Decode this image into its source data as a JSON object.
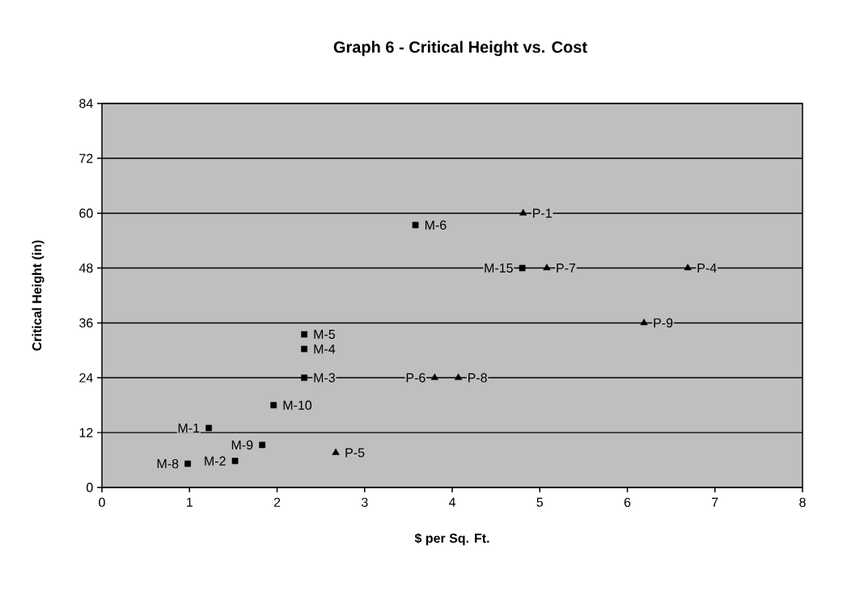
{
  "chart_data": {
    "type": "scatter",
    "title": "Graph 6 - Critical Height vs. Cost",
    "xlabel": "$ per Sq. Ft.",
    "ylabel": "Critical Height (in)",
    "xlim": [
      0,
      8
    ],
    "ylim": [
      0,
      84
    ],
    "xticks": [
      0,
      1,
      2,
      3,
      4,
      5,
      6,
      7,
      8
    ],
    "yticks": [
      0,
      12,
      24,
      36,
      48,
      60,
      72,
      84
    ],
    "grid": "y",
    "series": [
      {
        "marker": "square",
        "color": "#000000",
        "x": [
          1.22,
          1.52,
          2.31,
          2.31,
          2.31,
          3.58,
          0.98,
          1.83,
          1.96,
          4.8
        ],
        "values": [
          13.0,
          5.8,
          24,
          30.3,
          33.5,
          57.4,
          5.2,
          9.3,
          18.0,
          48
        ]
      },
      {
        "marker": "triangle",
        "color": "#000000",
        "x": [
          4.81,
          6.69,
          2.67,
          3.8,
          5.08,
          4.07,
          6.19
        ],
        "values": [
          60,
          48,
          7.6,
          24,
          48,
          24,
          36
        ]
      }
    ],
    "annotations": [
      {
        "text": "M-1",
        "x": 1.22,
        "y": 13.0
      },
      {
        "text": "M-2",
        "x": 1.52,
        "y": 5.8
      },
      {
        "text": "M-3",
        "x": 2.31,
        "y": 24
      },
      {
        "text": "M-4",
        "x": 2.31,
        "y": 30.3
      },
      {
        "text": "M-5",
        "x": 2.31,
        "y": 33.5
      },
      {
        "text": "M-6",
        "x": 3.58,
        "y": 57.4
      },
      {
        "text": "M-8",
        "x": 0.98,
        "y": 5.2
      },
      {
        "text": "M-9",
        "x": 1.83,
        "y": 9.3
      },
      {
        "text": "M-10",
        "x": 1.96,
        "y": 18.0
      },
      {
        "text": "M-15",
        "x": 4.8,
        "y": 48
      },
      {
        "text": "P-1",
        "x": 4.81,
        "y": 60
      },
      {
        "text": "P-4",
        "x": 6.69,
        "y": 48
      },
      {
        "text": "P-5",
        "x": 2.67,
        "y": 7.6
      },
      {
        "text": "P-6",
        "x": 3.8,
        "y": 24
      },
      {
        "text": "P-7",
        "x": 5.08,
        "y": 48
      },
      {
        "text": "P-8",
        "x": 4.07,
        "y": 24
      },
      {
        "text": "P-9",
        "x": 6.19,
        "y": 36
      }
    ]
  }
}
